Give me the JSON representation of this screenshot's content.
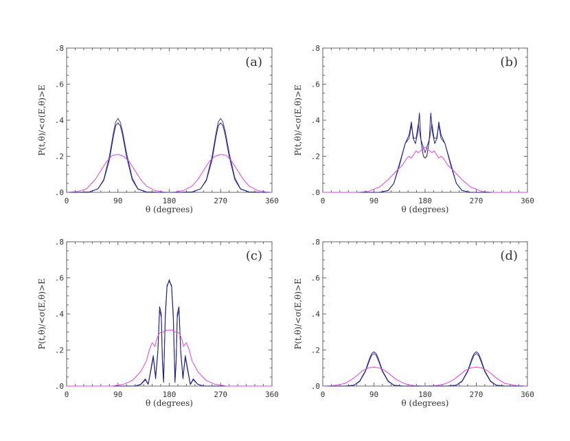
{
  "chart_data": [
    {
      "type": "line",
      "panel_label": "(a)",
      "xlabel": "θ (degrees)",
      "ylabel": "P(t,θ)/<σ(E,θ)>E",
      "xlim": [
        0,
        360
      ],
      "ylim": [
        0,
        0.8
      ],
      "xticks": [
        "0",
        "90",
        "180",
        "270",
        "360"
      ],
      "yticks": [
        ".0",
        ".2",
        ".4",
        ".6",
        ".8"
      ],
      "grid": false,
      "series": [
        {
          "color": "#3a3aa0",
          "x": [
            0,
            20,
            40,
            55,
            65,
            75,
            82,
            86,
            90,
            94,
            98,
            105,
            115,
            125,
            140,
            160,
            180,
            200,
            220,
            235,
            245,
            255,
            262,
            266,
            270,
            274,
            278,
            285,
            295,
            305,
            320,
            340,
            360
          ],
          "y": [
            0,
            0,
            0.002,
            0.02,
            0.07,
            0.2,
            0.33,
            0.39,
            0.41,
            0.39,
            0.34,
            0.22,
            0.08,
            0.02,
            0.002,
            0,
            0,
            0,
            0.002,
            0.02,
            0.07,
            0.2,
            0.33,
            0.39,
            0.41,
            0.39,
            0.34,
            0.22,
            0.08,
            0.02,
            0.002,
            0,
            0
          ]
        },
        {
          "color": "#1a1a8a",
          "x": [
            0,
            20,
            40,
            55,
            65,
            75,
            82,
            86,
            90,
            94,
            98,
            105,
            115,
            125,
            140,
            160,
            180,
            200,
            220,
            235,
            245,
            255,
            262,
            266,
            270,
            274,
            278,
            285,
            295,
            305,
            320,
            340,
            360
          ],
          "y": [
            0,
            0,
            0.002,
            0.02,
            0.065,
            0.18,
            0.31,
            0.37,
            0.385,
            0.37,
            0.32,
            0.2,
            0.07,
            0.018,
            0.002,
            0,
            0,
            0,
            0.002,
            0.02,
            0.065,
            0.18,
            0.31,
            0.37,
            0.385,
            0.37,
            0.32,
            0.2,
            0.07,
            0.018,
            0.002,
            0,
            0
          ]
        },
        {
          "color": "#e040e0",
          "x": [
            0,
            20,
            35,
            50,
            60,
            70,
            80,
            90,
            100,
            110,
            120,
            130,
            140,
            155,
            170,
            180,
            190,
            205,
            220,
            230,
            240,
            250,
            260,
            270,
            280,
            290,
            300,
            310,
            320,
            335,
            350,
            360
          ],
          "y": [
            0,
            0.005,
            0.02,
            0.07,
            0.12,
            0.17,
            0.205,
            0.21,
            0.2,
            0.17,
            0.12,
            0.07,
            0.035,
            0.01,
            0.002,
            0.001,
            0.002,
            0.01,
            0.035,
            0.07,
            0.12,
            0.17,
            0.2,
            0.21,
            0.205,
            0.17,
            0.12,
            0.07,
            0.035,
            0.01,
            0.002,
            0
          ]
        }
      ]
    },
    {
      "type": "line",
      "panel_label": "(b)",
      "xlabel": "θ (degrees)",
      "ylabel": "P(t,θ)/<σ(E,θ)>E",
      "xlim": [
        0,
        360
      ],
      "ylim": [
        0,
        0.8
      ],
      "xticks": [
        "0",
        "90",
        "180",
        "270",
        "360"
      ],
      "yticks": [
        ".0",
        ".2",
        ".4",
        ".6",
        ".8"
      ],
      "grid": false,
      "series": [
        {
          "color": "#3a3aa0",
          "x": [
            0,
            100,
            115,
            125,
            135,
            145,
            152,
            156,
            160,
            164,
            168,
            172,
            176,
            180,
            184,
            188,
            192,
            196,
            200,
            204,
            208,
            215,
            225,
            235,
            245,
            260,
            360
          ],
          "y": [
            0,
            0,
            0.01,
            0.05,
            0.15,
            0.27,
            0.3,
            0.37,
            0.3,
            0.3,
            0.38,
            0.3,
            0.26,
            0.22,
            0.26,
            0.3,
            0.38,
            0.3,
            0.3,
            0.37,
            0.3,
            0.27,
            0.15,
            0.05,
            0.01,
            0,
            0
          ]
        },
        {
          "color": "#1a1a8a",
          "x": [
            0,
            100,
            115,
            125,
            135,
            145,
            152,
            156,
            159,
            163,
            167,
            170,
            173,
            177,
            180,
            183,
            187,
            190,
            193,
            197,
            201,
            204,
            208,
            215,
            225,
            235,
            245,
            260,
            360
          ],
          "y": [
            0,
            0,
            0.01,
            0.05,
            0.16,
            0.27,
            0.32,
            0.39,
            0.3,
            0.27,
            0.33,
            0.44,
            0.28,
            0.2,
            0.19,
            0.2,
            0.28,
            0.44,
            0.33,
            0.27,
            0.3,
            0.39,
            0.32,
            0.27,
            0.16,
            0.05,
            0.01,
            0,
            0
          ]
        },
        {
          "color": "#e040e0",
          "x": [
            0,
            60,
            80,
            100,
            115,
            130,
            140,
            148,
            152,
            156,
            160,
            164,
            168,
            172,
            176,
            180,
            184,
            188,
            192,
            196,
            200,
            204,
            208,
            212,
            220,
            230,
            245,
            260,
            280,
            300,
            360
          ],
          "y": [
            0,
            0,
            0.005,
            0.03,
            0.07,
            0.12,
            0.15,
            0.19,
            0.2,
            0.19,
            0.21,
            0.23,
            0.22,
            0.23,
            0.24,
            0.25,
            0.24,
            0.23,
            0.22,
            0.23,
            0.21,
            0.19,
            0.2,
            0.19,
            0.15,
            0.12,
            0.07,
            0.03,
            0.005,
            0,
            0
          ]
        }
      ]
    },
    {
      "type": "line",
      "panel_label": "(c)",
      "xlabel": "θ (degrees)",
      "ylabel": "P(t,θ)/<σ(E,θ)>E",
      "xlim": [
        0,
        360
      ],
      "ylim": [
        0,
        0.8
      ],
      "xticks": [
        "0",
        "90",
        "180",
        "270",
        "360"
      ],
      "yticks": [
        ".0",
        ".2",
        ".4",
        ".6",
        ".8"
      ],
      "grid": false,
      "series": [
        {
          "color": "#3a3aa0",
          "x": [
            0,
            120,
            130,
            138,
            143,
            148,
            152,
            156,
            160,
            163,
            166,
            168,
            170,
            173,
            176,
            180,
            184,
            187,
            190,
            192,
            194,
            197,
            200,
            204,
            208,
            212,
            217,
            222,
            230,
            240,
            360
          ],
          "y": [
            0,
            0,
            0.01,
            0.04,
            0.01,
            0.1,
            0.17,
            0.05,
            0.2,
            0.42,
            0.38,
            0.15,
            0.03,
            0.4,
            0.56,
            0.58,
            0.56,
            0.4,
            0.03,
            0.15,
            0.38,
            0.42,
            0.2,
            0.05,
            0.17,
            0.1,
            0.01,
            0.04,
            0.01,
            0,
            0
          ]
        },
        {
          "color": "#1a1a8a",
          "x": [
            0,
            120,
            130,
            138,
            143,
            148,
            152,
            156,
            160,
            163,
            166,
            168,
            170,
            173,
            176,
            180,
            184,
            187,
            190,
            192,
            194,
            197,
            200,
            204,
            208,
            212,
            217,
            222,
            230,
            240,
            360
          ],
          "y": [
            0,
            0,
            0.008,
            0.035,
            0.01,
            0.09,
            0.16,
            0.04,
            0.19,
            0.44,
            0.4,
            0.13,
            0.02,
            0.38,
            0.55,
            0.59,
            0.55,
            0.38,
            0.02,
            0.13,
            0.4,
            0.44,
            0.19,
            0.04,
            0.16,
            0.09,
            0.008,
            0.035,
            0.01,
            0,
            0
          ]
        },
        {
          "color": "#e040e0",
          "x": [
            0,
            80,
            100,
            115,
            130,
            140,
            145,
            150,
            155,
            158,
            162,
            166,
            170,
            175,
            180,
            185,
            190,
            194,
            198,
            202,
            205,
            210,
            215,
            220,
            230,
            245,
            260,
            280,
            360
          ],
          "y": [
            0,
            0,
            0.01,
            0.03,
            0.08,
            0.14,
            0.2,
            0.24,
            0.22,
            0.26,
            0.29,
            0.3,
            0.3,
            0.31,
            0.31,
            0.31,
            0.3,
            0.3,
            0.29,
            0.26,
            0.22,
            0.24,
            0.2,
            0.14,
            0.08,
            0.03,
            0.01,
            0,
            0
          ]
        }
      ]
    },
    {
      "type": "line",
      "panel_label": "(d)",
      "xlabel": "θ (degrees)",
      "ylabel": "P(t,θ)/<σ(E,θ)>E",
      "xlim": [
        0,
        360
      ],
      "ylim": [
        0,
        0.8
      ],
      "xticks": [
        "0",
        "90",
        "180",
        "270",
        "360"
      ],
      "yticks": [
        ".0",
        ".2",
        ".4",
        ".6",
        ".8"
      ],
      "grid": false,
      "series": [
        {
          "color": "#3a3aa0",
          "x": [
            0,
            40,
            55,
            65,
            75,
            82,
            86,
            90,
            94,
            98,
            105,
            115,
            125,
            140,
            180,
            220,
            235,
            245,
            255,
            262,
            266,
            270,
            274,
            278,
            285,
            295,
            305,
            320,
            360
          ],
          "y": [
            0,
            0,
            0.005,
            0.025,
            0.08,
            0.14,
            0.17,
            0.18,
            0.17,
            0.14,
            0.08,
            0.025,
            0.005,
            0,
            0,
            0,
            0.005,
            0.025,
            0.08,
            0.14,
            0.17,
            0.18,
            0.17,
            0.14,
            0.08,
            0.025,
            0.005,
            0,
            0
          ]
        },
        {
          "color": "#1a1a8a",
          "x": [
            0,
            40,
            55,
            65,
            75,
            82,
            86,
            90,
            94,
            98,
            105,
            115,
            125,
            140,
            180,
            220,
            235,
            245,
            255,
            262,
            266,
            270,
            274,
            278,
            285,
            295,
            305,
            320,
            360
          ],
          "y": [
            0,
            0,
            0.005,
            0.028,
            0.085,
            0.15,
            0.18,
            0.19,
            0.18,
            0.15,
            0.085,
            0.028,
            0.005,
            0,
            0,
            0,
            0.005,
            0.028,
            0.085,
            0.15,
            0.18,
            0.19,
            0.18,
            0.15,
            0.085,
            0.028,
            0.005,
            0,
            0
          ]
        },
        {
          "color": "#e040e0",
          "x": [
            0,
            20,
            40,
            55,
            70,
            80,
            90,
            100,
            110,
            120,
            130,
            145,
            160,
            180,
            200,
            215,
            230,
            240,
            250,
            260,
            270,
            280,
            290,
            305,
            320,
            340,
            360
          ],
          "y": [
            0,
            0.003,
            0.015,
            0.045,
            0.085,
            0.1,
            0.105,
            0.1,
            0.085,
            0.06,
            0.035,
            0.012,
            0.003,
            0.001,
            0.003,
            0.012,
            0.035,
            0.06,
            0.085,
            0.1,
            0.105,
            0.1,
            0.085,
            0.045,
            0.015,
            0.003,
            0
          ]
        }
      ]
    }
  ]
}
